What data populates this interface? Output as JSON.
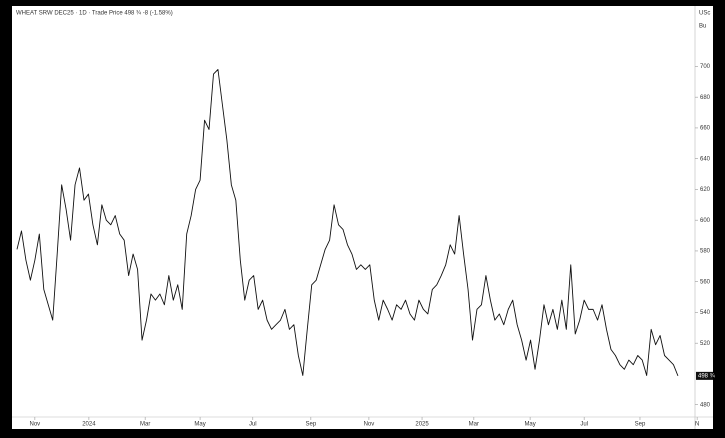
{
  "chart_data": {
    "type": "line",
    "title": "WHEAT SRW DEC25 · 1D · Trade Price 498 ¾ -8 (-1.58%)",
    "y_unit": "USc",
    "y_unit_sub": "Bu",
    "series": [
      {
        "name": "WHEAT SRW DEC25",
        "color": "#111111",
        "values": [
          581,
          593,
          574,
          561,
          574,
          591,
          555,
          545,
          535,
          578,
          623,
          607,
          587,
          623,
          634,
          613,
          617,
          597,
          584,
          610,
          600,
          597,
          603,
          591,
          587,
          564,
          578,
          568,
          522,
          535,
          552,
          548,
          552,
          545,
          564,
          548,
          558,
          542,
          591,
          603,
          620,
          626,
          665,
          659,
          695,
          698,
          675,
          652,
          623,
          613,
          574,
          548,
          561,
          564,
          542,
          548,
          535,
          529,
          532,
          535,
          542,
          529,
          532,
          512,
          499,
          529,
          558,
          561,
          571,
          581,
          587,
          610,
          597,
          594,
          584,
          578,
          568,
          571,
          568,
          571,
          548,
          535,
          548,
          542,
          535,
          545,
          542,
          548,
          539,
          535,
          548,
          542,
          539,
          555,
          558,
          564,
          571,
          584,
          578,
          603,
          578,
          555,
          522,
          542,
          545,
          564,
          548,
          535,
          539,
          532,
          542,
          548,
          532,
          522,
          509,
          522,
          503,
          522,
          545,
          532,
          542,
          529,
          548,
          529,
          571,
          526,
          535,
          548,
          542,
          542,
          535,
          545,
          529,
          516,
          512,
          506,
          503,
          509,
          506,
          512,
          509,
          499,
          529,
          519,
          525,
          512,
          509,
          506,
          498.75
        ]
      }
    ],
    "xlim": [
      -0.67,
      150.7
    ],
    "xticks": [
      {
        "value": 4.0,
        "label": "Nov"
      },
      {
        "value": 16.1,
        "label": "2024"
      },
      {
        "value": 28.7,
        "label": "Mar"
      },
      {
        "value": 41.0,
        "label": "May"
      },
      {
        "value": 52.8,
        "label": "Jul"
      },
      {
        "value": 65.8,
        "label": "Sep"
      },
      {
        "value": 78.8,
        "label": "Nov"
      },
      {
        "value": 90.7,
        "label": "2025"
      },
      {
        "value": 102.3,
        "label": "Mar"
      },
      {
        "value": 114.9,
        "label": "May"
      },
      {
        "value": 127.0,
        "label": "Jul"
      },
      {
        "value": 139.5,
        "label": "Sep"
      },
      {
        "value": 152.3,
        "label": "N"
      }
    ],
    "ylim": [
      472,
      738
    ],
    "yticks": [
      480,
      520,
      540,
      560,
      580,
      600,
      620,
      640,
      660,
      680,
      700
    ],
    "last_value": {
      "value": 498.75,
      "label": "498 ¾"
    },
    "grid": false
  }
}
